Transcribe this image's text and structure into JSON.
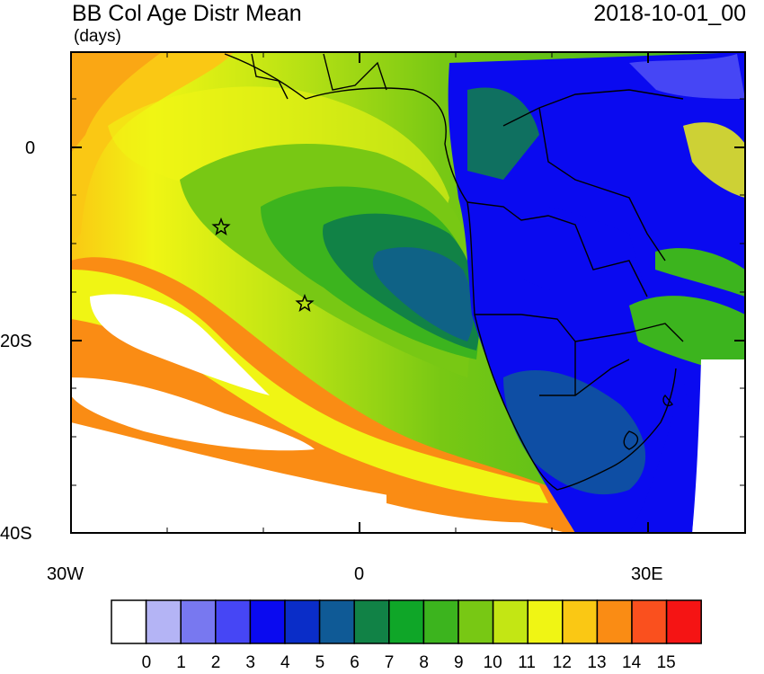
{
  "header": {
    "title": "BB Col Age Distr Mean",
    "units": "(days)",
    "date": "2018-10-01_00"
  },
  "axes": {
    "lat_labels": [
      "0",
      "20S",
      "40S"
    ],
    "lon_labels": [
      "30W",
      "0",
      "30E"
    ]
  },
  "colorbar": {
    "labels": [
      "0",
      "1",
      "2",
      "3",
      "4",
      "5",
      "6",
      "7",
      "8",
      "9",
      "10",
      "11",
      "12",
      "13",
      "14",
      "15"
    ],
    "colors": [
      "#ffffff",
      "#b4b4f5",
      "#7878f0",
      "#4646f5",
      "#0a0af0",
      "#0a2dc8",
      "#0f5a96",
      "#118246",
      "#0fa628",
      "#3cb41e",
      "#78c814",
      "#c3e614",
      "#f0f514",
      "#fac814",
      "#fa8c14",
      "#fa501e",
      "#f51414"
    ]
  },
  "markers": [
    "star",
    "star"
  ]
}
